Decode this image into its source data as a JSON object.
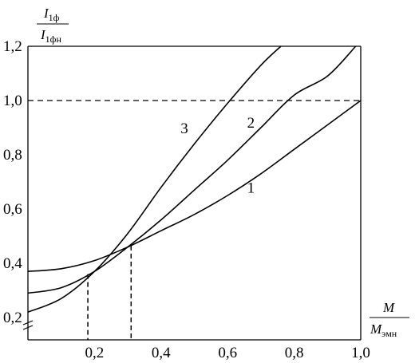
{
  "chart_data": {
    "type": "line",
    "ylabel": {
      "numerator": "I",
      "numerator_sub": "1ф",
      "denominator": "I",
      "denominator_sub": "1фн"
    },
    "xlabel": {
      "numerator": "M",
      "denominator": "M",
      "denominator_sub": "эмн"
    },
    "xlim": [
      0,
      1.0
    ],
    "ylim": [
      0.15,
      1.2
    ],
    "x_ticks": [
      "0,2",
      "0,4",
      "0,6",
      "0,8",
      "1,0"
    ],
    "y_ticks": [
      "0,2",
      "0,4",
      "0,6",
      "0,8",
      "1,0",
      "1,2"
    ],
    "axis_break": "y-axis below 0,2",
    "reference_line": {
      "y": 1.0,
      "style": "dashed"
    },
    "drop_lines": [
      {
        "x": 0.18,
        "y": 0.36
      },
      {
        "x": 0.31,
        "y": 0.465
      }
    ],
    "series": [
      {
        "label": "1",
        "x": [
          0,
          0.1,
          0.2,
          0.3,
          0.4,
          0.5,
          0.6,
          0.7,
          0.8,
          0.9,
          1.0
        ],
        "y": [
          0.37,
          0.38,
          0.41,
          0.46,
          0.52,
          0.58,
          0.65,
          0.73,
          0.82,
          0.91,
          1.0
        ]
      },
      {
        "label": "2",
        "x": [
          0,
          0.1,
          0.2,
          0.3,
          0.4,
          0.5,
          0.6,
          0.7,
          0.8,
          0.9,
          0.985
        ],
        "y": [
          0.29,
          0.31,
          0.37,
          0.46,
          0.56,
          0.67,
          0.78,
          0.9,
          1.02,
          1.09,
          1.2
        ]
      },
      {
        "label": "3",
        "x": [
          0,
          0.1,
          0.2,
          0.3,
          0.4,
          0.5,
          0.6,
          0.7,
          0.76
        ],
        "y": [
          0.22,
          0.27,
          0.37,
          0.51,
          0.68,
          0.84,
          0.99,
          1.13,
          1.2
        ]
      }
    ],
    "series_label_positions": [
      {
        "label": "1",
        "x": 0.67,
        "y": 0.66
      },
      {
        "label": "2",
        "x": 0.67,
        "y": 0.9
      },
      {
        "label": "3",
        "x": 0.47,
        "y": 0.88
      }
    ],
    "grid": false
  }
}
